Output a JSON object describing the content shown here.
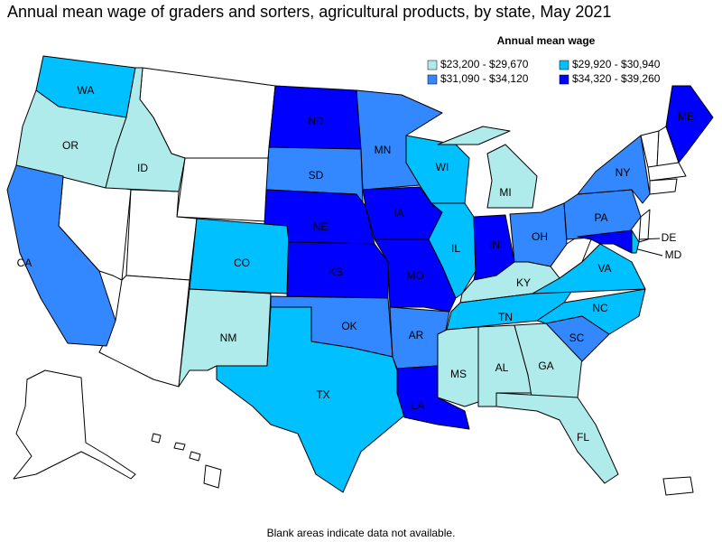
{
  "title": "Annual mean wage of graders and sorters, agricultural products, by state, May 2021",
  "legend": {
    "title": "Annual mean wage",
    "items": [
      {
        "label": "$23,200 - $29,670",
        "color": "#b0ebec"
      },
      {
        "label": "$29,920 - $30,940",
        "color": "#00c0ff"
      },
      {
        "label": "$31,090 - $34,120",
        "color": "#3388ff"
      },
      {
        "label": "$34,320 - $39,260",
        "color": "#0000ff"
      }
    ]
  },
  "states": [
    {
      "label": "WA",
      "color": "#00c0ff"
    },
    {
      "label": "OR",
      "color": "#b0ebec"
    },
    {
      "label": "ID",
      "color": "#b0ebec"
    },
    {
      "label": "CA",
      "color": "#3388ff"
    },
    {
      "label": "CO",
      "color": "#00c0ff"
    },
    {
      "label": "NM",
      "color": "#b0ebec"
    },
    {
      "label": "ND",
      "color": "#0000ff"
    },
    {
      "label": "SD",
      "color": "#3388ff"
    },
    {
      "label": "NE",
      "color": "#0000ff"
    },
    {
      "label": "KS",
      "color": "#0000ff"
    },
    {
      "label": "OK",
      "color": "#3388ff"
    },
    {
      "label": "TX",
      "color": "#00c0ff"
    },
    {
      "label": "MN",
      "color": "#3388ff"
    },
    {
      "label": "IA",
      "color": "#0000ff"
    },
    {
      "label": "MO",
      "color": "#0000ff"
    },
    {
      "label": "AR",
      "color": "#3388ff"
    },
    {
      "label": "LA",
      "color": "#0000ff"
    },
    {
      "label": "WI",
      "color": "#00c0ff"
    },
    {
      "label": "IL",
      "color": "#00c0ff"
    },
    {
      "label": "MI",
      "color": "#b0ebec"
    },
    {
      "label": "IN",
      "color": "#0000ff"
    },
    {
      "label": "OH",
      "color": "#3388ff"
    },
    {
      "label": "KY",
      "color": "#b0ebec"
    },
    {
      "label": "TN",
      "color": "#00c0ff"
    },
    {
      "label": "MS",
      "color": "#b0ebec"
    },
    {
      "label": "AL",
      "color": "#b0ebec"
    },
    {
      "label": "GA",
      "color": "#b0ebec"
    },
    {
      "label": "FL",
      "color": "#b0ebec"
    },
    {
      "label": "SC",
      "color": "#3388ff"
    },
    {
      "label": "NC",
      "color": "#00c0ff"
    },
    {
      "label": "VA",
      "color": "#00c0ff"
    },
    {
      "label": "PA",
      "color": "#3388ff"
    },
    {
      "label": "NY",
      "color": "#3388ff"
    },
    {
      "label": "MD",
      "color": "#0000ff"
    },
    {
      "label": "DE",
      "color": "#00c0ff"
    },
    {
      "label": "ME",
      "color": "#0000ff"
    }
  ],
  "note": "Blank areas indicate data not available."
}
